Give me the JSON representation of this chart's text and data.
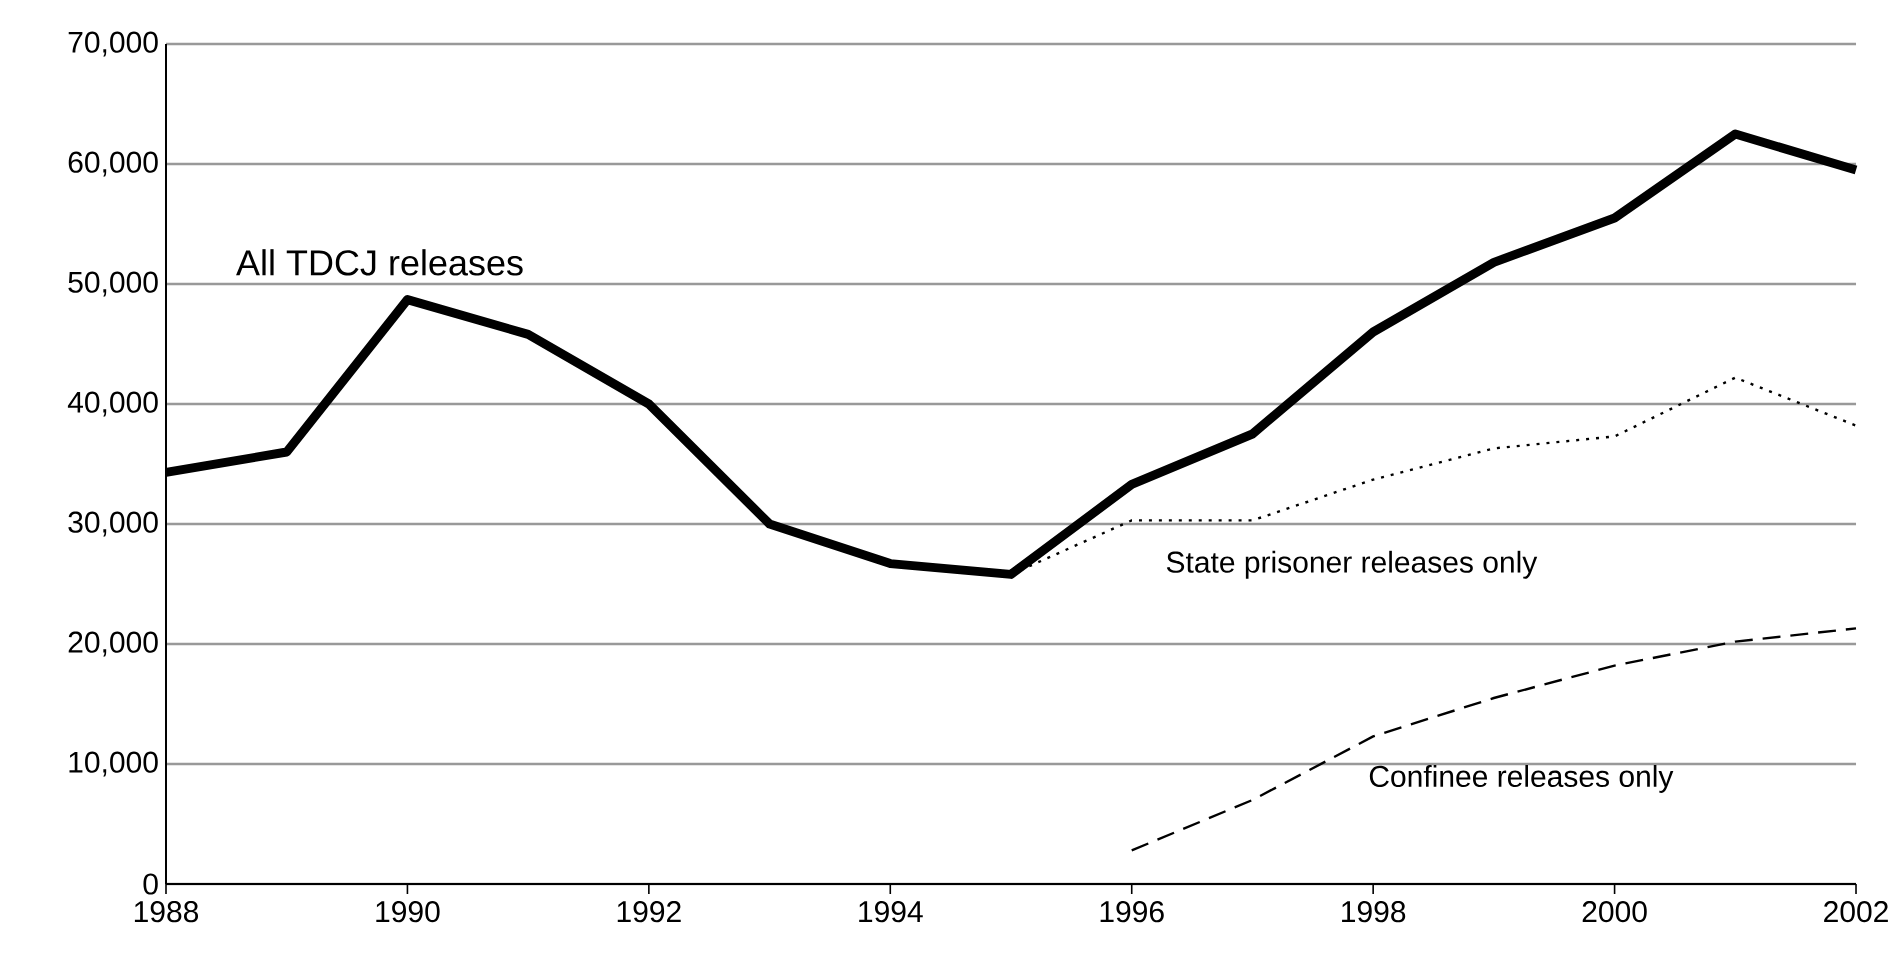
{
  "chart_data": {
    "type": "line",
    "xlim": [
      1988,
      2002
    ],
    "ylim": [
      0,
      70000
    ],
    "xticks": [
      1988,
      1990,
      1992,
      1994,
      1996,
      1998,
      2000,
      2002
    ],
    "yticks": [
      {
        "value": 0,
        "label": "0"
      },
      {
        "value": 10000,
        "label": "10,000"
      },
      {
        "value": 20000,
        "label": "20,000"
      },
      {
        "value": 30000,
        "label": "30,000"
      },
      {
        "value": 40000,
        "label": "40,000"
      },
      {
        "value": 50000,
        "label": "50,000"
      },
      {
        "value": 60000,
        "label": "60,000"
      },
      {
        "value": 70000,
        "label": "70,000"
      }
    ],
    "grid": "y",
    "series": [
      {
        "name": "All TDCJ releases",
        "color": "#000000",
        "line_style": "solid",
        "x": [
          1988,
          1989,
          1990,
          1991,
          1992,
          1993,
          1994,
          1995,
          1996,
          1997,
          1998,
          1999,
          2000,
          2001,
          2002
        ],
        "values": [
          34300,
          36000,
          48700,
          45800,
          40000,
          30000,
          26700,
          25800,
          33300,
          37500,
          46000,
          51800,
          55500,
          62500,
          59500
        ]
      },
      {
        "name": "State prisoner releases only",
        "color": "#000000",
        "line_style": "dotted",
        "x": [
          1995,
          1996,
          1997,
          1998,
          1999,
          2000,
          2001,
          2002
        ],
        "values": [
          25800,
          30300,
          30300,
          33700,
          36300,
          37300,
          42200,
          38200
        ]
      },
      {
        "name": "Confinee releases only",
        "color": "#000000",
        "line_style": "dashed",
        "x": [
          1996,
          1997,
          1998,
          1999,
          2000,
          2001,
          2002
        ],
        "values": [
          2800,
          7000,
          12300,
          15500,
          18200,
          20200,
          21300
        ]
      }
    ]
  }
}
